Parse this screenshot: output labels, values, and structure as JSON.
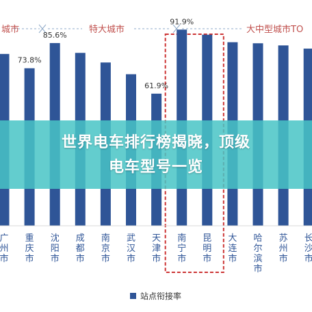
{
  "chart_data": {
    "type": "bar",
    "categories": [
      "广州市",
      "重庆市",
      "沈阳市",
      "成都市",
      "南京市",
      "武汉市",
      "天津市",
      "南宁市",
      "昆明市",
      "大连市",
      "哈尔滨市",
      "苏州市",
      "长沙市"
    ],
    "series": [
      {
        "name": "站点衔接率",
        "values": [
          80.5,
          73.8,
          85.6,
          81.0,
          76.5,
          71.0,
          61.9,
          91.9,
          89.5,
          86.0,
          85.5,
          84.5,
          83.0
        ],
        "data_labels": [
          "",
          "73.8%",
          "85.6%",
          "",
          "",
          "",
          "61.9%",
          "91.9%",
          "",
          "",
          "",
          "",
          ""
        ]
      }
    ],
    "groups": [
      {
        "label": "城市",
        "start": 0,
        "end": 0
      },
      {
        "label": "特大城市",
        "start": 1,
        "end": 8
      },
      {
        "label": "大中型城市TO",
        "start": 9,
        "end": 12
      }
    ],
    "ylim": [
      0,
      100
    ],
    "highlight": {
      "start": 7,
      "end": 8,
      "style": "dashed-box",
      "color": "#cc3333"
    },
    "legend_position": "bottom",
    "grid": false,
    "colors": {
      "bar": "#2f5597",
      "group_label": "#c0504d",
      "group_label_last": "#c0504d",
      "bracket": "#8ea9c8",
      "highlight": "#cc3333"
    }
  },
  "overlay": {
    "line1": "世界电车排行榜揭晓，顶级",
    "line2": "电车型号一览",
    "background": "#48c4c6"
  }
}
